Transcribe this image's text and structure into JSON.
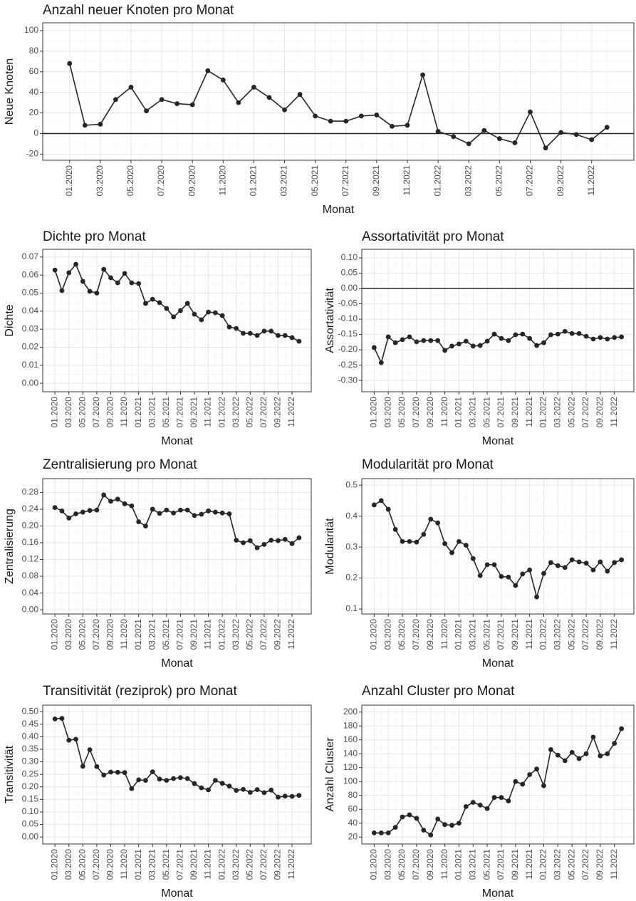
{
  "chart_data": [
    {
      "type": "line",
      "title": "Anzahl neuer Knoten pro Monat",
      "x_label": "Monat",
      "y_label": "Neue Knoten",
      "color": "#262626",
      "grid": true,
      "hline": 0,
      "categories": [
        "01.2020",
        null,
        "03.2020",
        null,
        "05.2020",
        null,
        "07.2020",
        null,
        "09.2020",
        null,
        "11.2020",
        null,
        "01.2021",
        null,
        "03.2021",
        null,
        "05.2021",
        null,
        "07.2021",
        null,
        "09.2021",
        null,
        "11.2021",
        null,
        "01.2022",
        null,
        "03.2022",
        null,
        "05.2022",
        null,
        "07.2022",
        null,
        "09.2022",
        null,
        "11.2022",
        null
      ],
      "values": [
        68,
        8,
        9,
        33,
        45,
        22,
        33,
        29,
        28,
        61,
        52,
        30,
        45,
        35,
        23,
        38,
        17,
        12,
        12,
        17,
        18,
        7,
        8,
        57,
        2,
        -3,
        -10,
        3,
        -5,
        -9,
        21,
        -14,
        1,
        -1,
        -6,
        6
      ],
      "ylim": [
        -26,
        107.6
      ],
      "yticks": [
        -20,
        0,
        20,
        40,
        60,
        80,
        100
      ]
    },
    {
      "type": "line",
      "title": "Dichte pro Monat",
      "x_label": "Monat",
      "y_label": "Dichte",
      "color": "#262626",
      "grid": true,
      "categories": [
        "01.2020",
        null,
        "03.2020",
        null,
        "05.2020",
        null,
        "07.2020",
        null,
        "09.2020",
        null,
        "11.2020",
        null,
        "01.2021",
        null,
        "03.2021",
        null,
        "05.2021",
        null,
        "07.2021",
        null,
        "09.2021",
        null,
        "11.2021",
        null,
        "01.2022",
        null,
        "03.2022",
        null,
        "05.2022",
        null,
        "07.2022",
        null,
        "09.2022",
        null,
        "11.2022",
        null
      ],
      "values": [
        0.0628,
        0.0514,
        0.0613,
        0.066,
        0.0565,
        0.051,
        0.05,
        0.0632,
        0.0585,
        0.0557,
        0.0609,
        0.0557,
        0.0553,
        0.0443,
        0.0466,
        0.0447,
        0.0415,
        0.0368,
        0.0403,
        0.0443,
        0.0383,
        0.0352,
        0.0395,
        0.0391,
        0.0375,
        0.0312,
        0.0304,
        0.0277,
        0.0277,
        0.0265,
        0.0289,
        0.0289,
        0.0265,
        0.0265,
        0.0253,
        0.0233
      ],
      "ylim": [
        -0.0047,
        0.0743
      ],
      "yticks": [
        {
          "value": 0,
          "label": "0.00"
        },
        {
          "value": 0.01,
          "label": "0.01"
        },
        {
          "value": 0.02,
          "label": "0.02"
        },
        {
          "value": 0.03,
          "label": "0.03"
        },
        {
          "value": 0.04,
          "label": "0.04"
        },
        {
          "value": 0.05,
          "label": "0.05"
        },
        {
          "value": 0.06,
          "label": "0.06"
        },
        {
          "value": 0.07,
          "label": "0.07"
        }
      ]
    },
    {
      "type": "line",
      "title": "Assortativität pro Monat",
      "x_label": "Monat",
      "y_label": "Assortativität",
      "color": "#262626",
      "grid": true,
      "hline": 0,
      "categories": [
        "01.2020",
        null,
        "03.2020",
        null,
        "05.2020",
        null,
        "07.2020",
        null,
        "09.2020",
        null,
        "11.2020",
        null,
        "01.2021",
        null,
        "03.2021",
        null,
        "05.2021",
        null,
        "07.2021",
        null,
        "09.2021",
        null,
        "11.2021",
        null,
        "01.2022",
        null,
        "03.2022",
        null,
        "05.2022",
        null,
        "07.2022",
        null,
        "09.2022",
        null,
        "11.2022",
        null
      ],
      "values": [
        -0.193,
        -0.242,
        -0.158,
        -0.177,
        -0.167,
        -0.158,
        -0.174,
        -0.17,
        -0.17,
        -0.17,
        -0.202,
        -0.188,
        -0.181,
        -0.172,
        -0.188,
        -0.186,
        -0.172,
        -0.149,
        -0.163,
        -0.17,
        -0.151,
        -0.149,
        -0.163,
        -0.186,
        -0.177,
        -0.151,
        -0.149,
        -0.14,
        -0.147,
        -0.147,
        -0.156,
        -0.165,
        -0.16,
        -0.165,
        -0.16,
        -0.158
      ],
      "ylim": [
        -0.337,
        0.128
      ],
      "yticks": [
        {
          "value": -0.3,
          "label": "-0.30"
        },
        {
          "value": -0.25,
          "label": "-0.25"
        },
        {
          "value": -0.2,
          "label": "-0.20"
        },
        {
          "value": -0.15,
          "label": "-0.15"
        },
        {
          "value": -0.1,
          "label": "-0.10"
        },
        {
          "value": -0.05,
          "label": "-0.05"
        },
        {
          "value": 0,
          "label": "0.00"
        },
        {
          "value": 0.05,
          "label": "0.05"
        },
        {
          "value": 0.1,
          "label": "0.10"
        }
      ]
    },
    {
      "type": "line",
      "title": "Zentralisierung pro Monat",
      "x_label": "Monat",
      "y_label": "Zentralisierung",
      "color": "#262626",
      "grid": true,
      "categories": [
        "01.2020",
        null,
        "03.2020",
        null,
        "05.2020",
        null,
        "07.2020",
        null,
        "09.2020",
        null,
        "11.2020",
        null,
        "01.2021",
        null,
        "03.2021",
        null,
        "05.2021",
        null,
        "07.2021",
        null,
        "09.2021",
        null,
        "11.2021",
        null,
        "01.2022",
        null,
        "03.2022",
        null,
        "05.2022",
        null,
        "07.2022",
        null,
        "09.2022",
        null,
        "11.2022",
        null
      ],
      "values": [
        0.244,
        0.236,
        0.219,
        0.229,
        0.233,
        0.237,
        0.238,
        0.274,
        0.259,
        0.264,
        0.253,
        0.248,
        0.21,
        0.2,
        0.24,
        0.23,
        0.238,
        0.231,
        0.238,
        0.238,
        0.225,
        0.228,
        0.236,
        0.233,
        0.231,
        0.229,
        0.166,
        0.16,
        0.165,
        0.148,
        0.156,
        0.166,
        0.165,
        0.168,
        0.158,
        0.172
      ],
      "ylim": [
        -0.01,
        0.313
      ],
      "yticks": [
        {
          "value": 0,
          "label": "0.00"
        },
        {
          "value": 0.04,
          "label": "0.04"
        },
        {
          "value": 0.08,
          "label": "0.08"
        },
        {
          "value": 0.12,
          "label": "0.12"
        },
        {
          "value": 0.16,
          "label": "0.16"
        },
        {
          "value": 0.2,
          "label": "0.20"
        },
        {
          "value": 0.24,
          "label": "0.24"
        },
        {
          "value": 0.28,
          "label": "0.28"
        }
      ]
    },
    {
      "type": "line",
      "title": "Modularität pro Monat",
      "x_label": "Monat",
      "y_label": "Modularität",
      "color": "#262626",
      "grid": true,
      "categories": [
        "01.2020",
        null,
        "03.2020",
        null,
        "05.2020",
        null,
        "07.2020",
        null,
        "09.2020",
        null,
        "11.2020",
        null,
        "01.2021",
        null,
        "03.2021",
        null,
        "05.2021",
        null,
        "07.2021",
        null,
        "09.2021",
        null,
        "11.2021",
        null,
        "01.2022",
        null,
        "03.2022",
        null,
        "05.2022",
        null,
        "07.2022",
        null,
        "09.2022",
        null,
        "11.2022",
        null
      ],
      "values": [
        0.436,
        0.45,
        0.422,
        0.357,
        0.318,
        0.318,
        0.316,
        0.341,
        0.39,
        0.378,
        0.311,
        0.282,
        0.318,
        0.306,
        0.263,
        0.208,
        0.243,
        0.243,
        0.205,
        0.203,
        0.176,
        0.213,
        0.226,
        0.139,
        0.215,
        0.25,
        0.24,
        0.234,
        0.259,
        0.252,
        0.248,
        0.226,
        0.252,
        0.222,
        0.25,
        0.259
      ],
      "ylim": [
        0.084,
        0.521
      ],
      "yticks": [
        0.1,
        0.2,
        0.3,
        0.4,
        0.5
      ]
    },
    {
      "type": "line",
      "title": "Transitivität (reziprok) pro Monat",
      "x_label": "Monat",
      "y_label": "Transitivität",
      "color": "#262626",
      "grid": true,
      "categories": [
        "01.2020",
        null,
        "03.2020",
        null,
        "05.2020",
        null,
        "07.2020",
        null,
        "09.2020",
        null,
        "11.2020",
        null,
        "01.2021",
        null,
        "03.2021",
        null,
        "05.2021",
        null,
        "07.2021",
        null,
        "09.2021",
        null,
        "11.2021",
        null,
        "01.2022",
        null,
        "03.2022",
        null,
        "05.2022",
        null,
        "07.2022",
        null,
        "09.2022",
        null,
        "11.2022",
        null
      ],
      "values": [
        0.471,
        0.473,
        0.386,
        0.39,
        0.282,
        0.348,
        0.281,
        0.247,
        0.259,
        0.258,
        0.257,
        0.193,
        0.228,
        0.226,
        0.26,
        0.231,
        0.226,
        0.233,
        0.237,
        0.233,
        0.213,
        0.196,
        0.188,
        0.226,
        0.214,
        0.203,
        0.186,
        0.19,
        0.178,
        0.189,
        0.177,
        0.187,
        0.159,
        0.163,
        0.162,
        0.166
      ],
      "ylim": [
        -0.028,
        0.526
      ],
      "yticks": [
        {
          "value": 0,
          "label": "0.00"
        },
        {
          "value": 0.05,
          "label": "0.05"
        },
        {
          "value": 0.1,
          "label": "0.10"
        },
        {
          "value": 0.15,
          "label": "0.15"
        },
        {
          "value": 0.2,
          "label": "0.20"
        },
        {
          "value": 0.25,
          "label": "0.25"
        },
        {
          "value": 0.3,
          "label": "0.30"
        },
        {
          "value": 0.35,
          "label": "0.35"
        },
        {
          "value": 0.4,
          "label": "0.40"
        },
        {
          "value": 0.45,
          "label": "0.45"
        },
        {
          "value": 0.5,
          "label": "0.50"
        }
      ]
    },
    {
      "type": "line",
      "title": "Anzahl Cluster pro Monat",
      "x_label": "Monat",
      "y_label": "Anzahl Cluster",
      "color": "#262626",
      "grid": true,
      "categories": [
        "01.2020",
        null,
        "03.2020",
        null,
        "05.2020",
        null,
        "07.2020",
        null,
        "09.2020",
        null,
        "11.2020",
        null,
        "01.2021",
        null,
        "03.2021",
        null,
        "05.2021",
        null,
        "07.2021",
        null,
        "09.2021",
        null,
        "11.2021",
        null,
        "01.2022",
        null,
        "03.2022",
        null,
        "05.2022",
        null,
        "07.2022",
        null,
        "09.2022",
        null,
        "11.2022",
        null
      ],
      "values": [
        26,
        26,
        26,
        34,
        49,
        52,
        47,
        30,
        23,
        46,
        38,
        37,
        40,
        64,
        70,
        66,
        61,
        77,
        77,
        72,
        100,
        96,
        110,
        118,
        94,
        146,
        138,
        130,
        142,
        133,
        140,
        164,
        137,
        140,
        155,
        176
      ],
      "ylim": [
        10,
        210
      ],
      "yticks": [
        20,
        40,
        60,
        80,
        100,
        120,
        140,
        160,
        180,
        200
      ]
    }
  ]
}
